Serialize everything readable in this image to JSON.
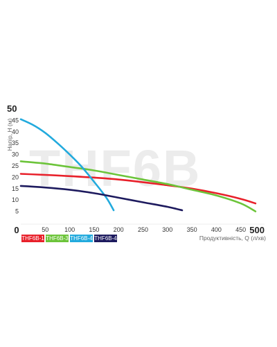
{
  "chart_data": {
    "type": "line",
    "watermark": "THF6B",
    "xlabel": "Продуктивність, Q (л/хв)",
    "ylabel": "Напір, Н (м)",
    "xlim": [
      0,
      500
    ],
    "ylim": [
      0,
      50
    ],
    "x_ticks": [
      {
        "value": 0,
        "label": "0",
        "big": true
      },
      {
        "value": 50,
        "label": "50",
        "big": false
      },
      {
        "value": 100,
        "label": "100",
        "big": false
      },
      {
        "value": 150,
        "label": "150",
        "big": false
      },
      {
        "value": 200,
        "label": "200",
        "big": false
      },
      {
        "value": 250,
        "label": "250",
        "big": false
      },
      {
        "value": 300,
        "label": "300",
        "big": false
      },
      {
        "value": 350,
        "label": "350",
        "big": false
      },
      {
        "value": 400,
        "label": "400",
        "big": false
      },
      {
        "value": 450,
        "label": "450",
        "big": false
      },
      {
        "value": 500,
        "label": "500",
        "big": true
      }
    ],
    "y_ticks": [
      {
        "value": 5,
        "label": "5",
        "big": false
      },
      {
        "value": 10,
        "label": "10",
        "big": false
      },
      {
        "value": 15,
        "label": "15",
        "big": false
      },
      {
        "value": 20,
        "label": "20",
        "big": false
      },
      {
        "value": 25,
        "label": "25",
        "big": false
      },
      {
        "value": 30,
        "label": "30",
        "big": false
      },
      {
        "value": 35,
        "label": "35",
        "big": false
      },
      {
        "value": 40,
        "label": "40",
        "big": false
      },
      {
        "value": 45,
        "label": "45",
        "big": false
      },
      {
        "value": 50,
        "label": "50",
        "big": true
      }
    ],
    "series": [
      {
        "name": "THF6B-1",
        "color": "#e8202a",
        "points": [
          [
            0,
            21.5
          ],
          [
            100,
            20.5
          ],
          [
            200,
            19
          ],
          [
            300,
            16.5
          ],
          [
            350,
            15
          ],
          [
            400,
            13
          ],
          [
            450,
            10.5
          ],
          [
            480,
            8.5
          ]
        ]
      },
      {
        "name": "THF6B-3",
        "color": "#6cc43a",
        "points": [
          [
            0,
            27
          ],
          [
            50,
            26
          ],
          [
            100,
            24.5
          ],
          [
            150,
            23
          ],
          [
            200,
            21
          ],
          [
            250,
            19
          ],
          [
            300,
            17
          ],
          [
            350,
            14.5
          ],
          [
            400,
            12
          ],
          [
            450,
            8.5
          ],
          [
            480,
            5
          ]
        ]
      },
      {
        "name": "THF6B-4",
        "color": "#22aadd",
        "points": [
          [
            0,
            45.5
          ],
          [
            25,
            43
          ],
          [
            50,
            39.5
          ],
          [
            75,
            35
          ],
          [
            100,
            30
          ],
          [
            125,
            24.5
          ],
          [
            150,
            18
          ],
          [
            175,
            11
          ],
          [
            190,
            5.5
          ]
        ]
      },
      {
        "name": "THF6B-4",
        "color": "#1d1a5e",
        "points": [
          [
            0,
            16.2
          ],
          [
            50,
            15.5
          ],
          [
            100,
            14.5
          ],
          [
            150,
            13
          ],
          [
            200,
            11
          ],
          [
            250,
            9
          ],
          [
            300,
            7
          ],
          [
            330,
            5.5
          ]
        ]
      }
    ],
    "legend": "bottom-left",
    "grid": false
  }
}
